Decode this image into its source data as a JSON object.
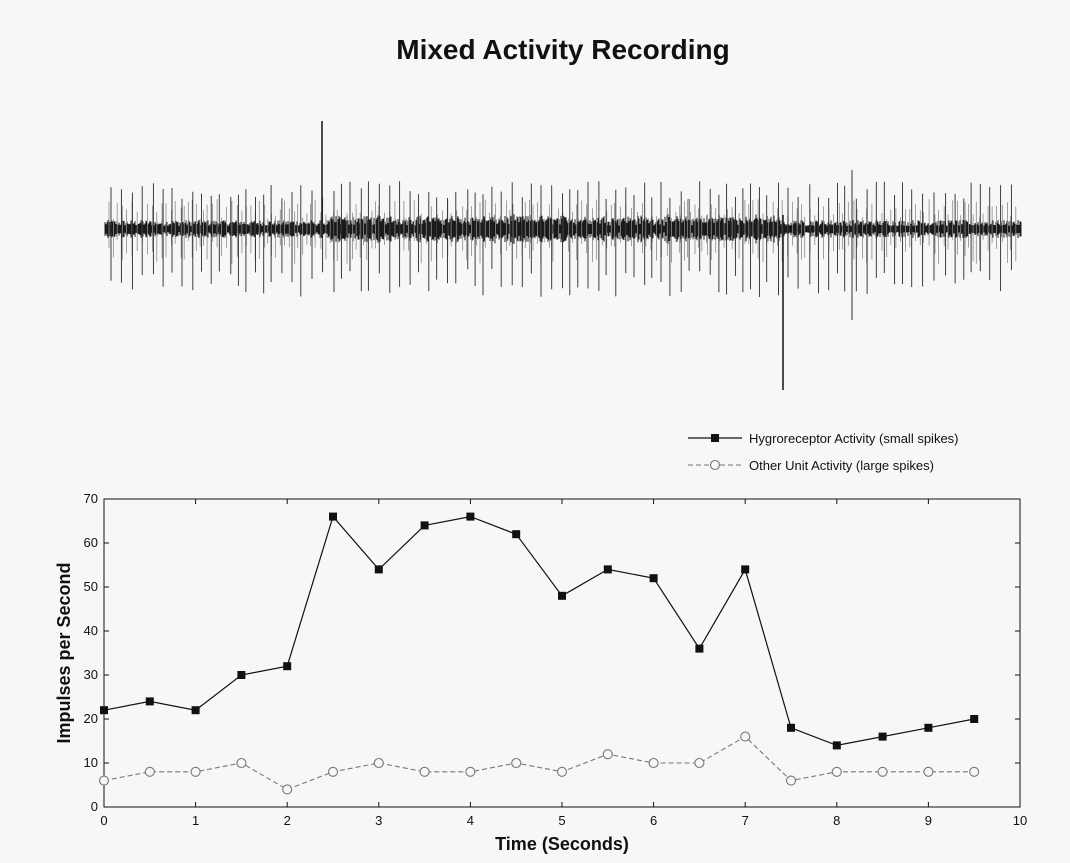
{
  "page_title": "Mixed Activity Recording",
  "chart_data": {
    "type": "line",
    "title": "Mixed Activity Recording",
    "xlabel": "Time (Seconds)",
    "ylabel": "Impulses per Second",
    "xlim": [
      0,
      10
    ],
    "ylim": [
      0,
      70
    ],
    "x_ticks": [
      0,
      1,
      2,
      3,
      4,
      5,
      6,
      7,
      8,
      9,
      10
    ],
    "y_ticks": [
      0,
      10,
      20,
      30,
      40,
      50,
      60,
      70
    ],
    "grid": false,
    "legend_placement": "above-right",
    "x": [
      0,
      0.5,
      1,
      1.5,
      2,
      2.5,
      3,
      3.5,
      4,
      4.5,
      5,
      5.5,
      6,
      6.5,
      7,
      7.5,
      8,
      8.5,
      9,
      9.5
    ],
    "series": [
      {
        "name": "Hygroreceptor Activity (small spikes)",
        "style": "solid line, filled square markers",
        "color": "#111111",
        "values": [
          22,
          24,
          22,
          30,
          32,
          66,
          54,
          64,
          66,
          62,
          48,
          54,
          52,
          36,
          54,
          18,
          14,
          16,
          18,
          20
        ]
      },
      {
        "name": "Other Unit Activity (large spikes)",
        "style": "dashed line, open circle markers",
        "color": "#777777",
        "values": [
          6,
          8,
          8,
          10,
          4,
          8,
          10,
          8,
          8,
          10,
          8,
          12,
          10,
          10,
          16,
          6,
          8,
          8,
          8,
          8
        ]
      }
    ]
  }
}
